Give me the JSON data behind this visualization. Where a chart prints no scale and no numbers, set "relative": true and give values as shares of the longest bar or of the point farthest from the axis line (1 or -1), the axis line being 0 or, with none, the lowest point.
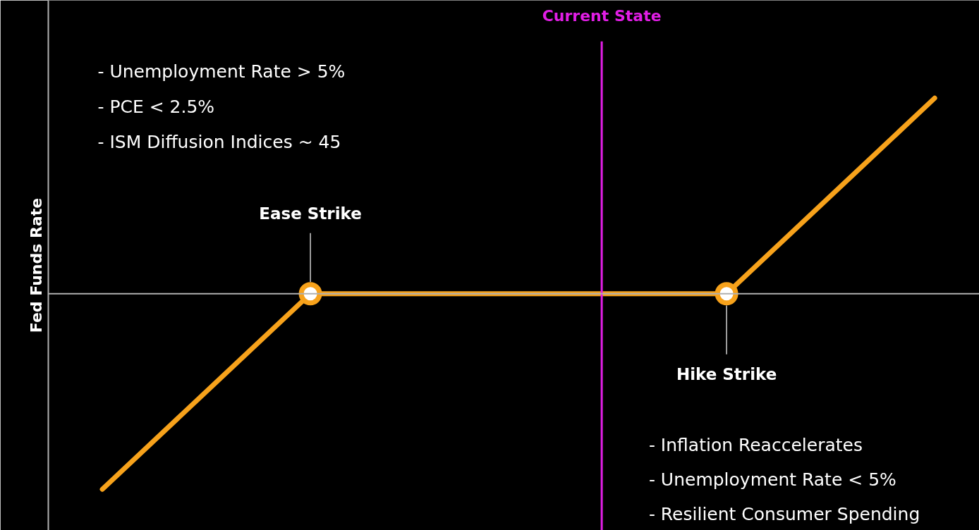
{
  "chart_data": {
    "type": "line",
    "relative": true,
    "ylabel": "Fed Funds Rate",
    "categories": [
      null,
      null,
      null,
      null,
      null
    ],
    "tick_labels": false,
    "grid": false,
    "line_style": "solid",
    "series": [
      {
        "color": "#f7a21b",
        "values": [
          -1,
          0,
          0,
          0,
          1
        ]
      }
    ],
    "annotations": [
      "- Unemployment Rate > 5%",
      "- PCE < 2.5%",
      "- ISM Diffusion Indices ~ 45",
      "- Inflation Reaccelerates",
      "- Unemployment Rate < 5%",
      "- Resilient Consumer Spending",
      "Ease Strike",
      "Hike Strike",
      "Current State"
    ]
  }
}
